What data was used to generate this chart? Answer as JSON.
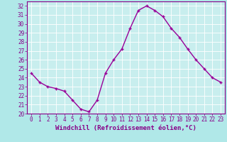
{
  "x": [
    0,
    1,
    2,
    3,
    4,
    5,
    6,
    7,
    8,
    9,
    10,
    11,
    12,
    13,
    14,
    15,
    16,
    17,
    18,
    19,
    20,
    21,
    22,
    23
  ],
  "y": [
    24.5,
    23.5,
    23.0,
    22.8,
    22.5,
    21.5,
    20.5,
    20.2,
    21.5,
    24.5,
    26.0,
    27.2,
    29.5,
    31.5,
    32.0,
    31.5,
    30.8,
    29.5,
    28.5,
    27.2,
    26.0,
    25.0,
    24.0,
    23.5
  ],
  "line_color": "#990099",
  "marker": "+",
  "marker_size": 3,
  "xlabel": "Windchill (Refroidissement éolien,°C)",
  "xlim": [
    -0.5,
    23.5
  ],
  "ylim": [
    20,
    32.5
  ],
  "yticks": [
    20,
    21,
    22,
    23,
    24,
    25,
    26,
    27,
    28,
    29,
    30,
    31,
    32
  ],
  "xticks": [
    0,
    1,
    2,
    3,
    4,
    5,
    6,
    7,
    8,
    9,
    10,
    11,
    12,
    13,
    14,
    15,
    16,
    17,
    18,
    19,
    20,
    21,
    22,
    23
  ],
  "bg_color": "#b0e8e8",
  "plot_bg_color": "#c8eeee",
  "grid_color": "#ffffff",
  "tick_color": "#880088",
  "spine_color": "#880088",
  "tick_label_fontsize": 5.5,
  "xlabel_fontsize": 6.5,
  "linewidth": 1.0,
  "marker_color": "#990099"
}
